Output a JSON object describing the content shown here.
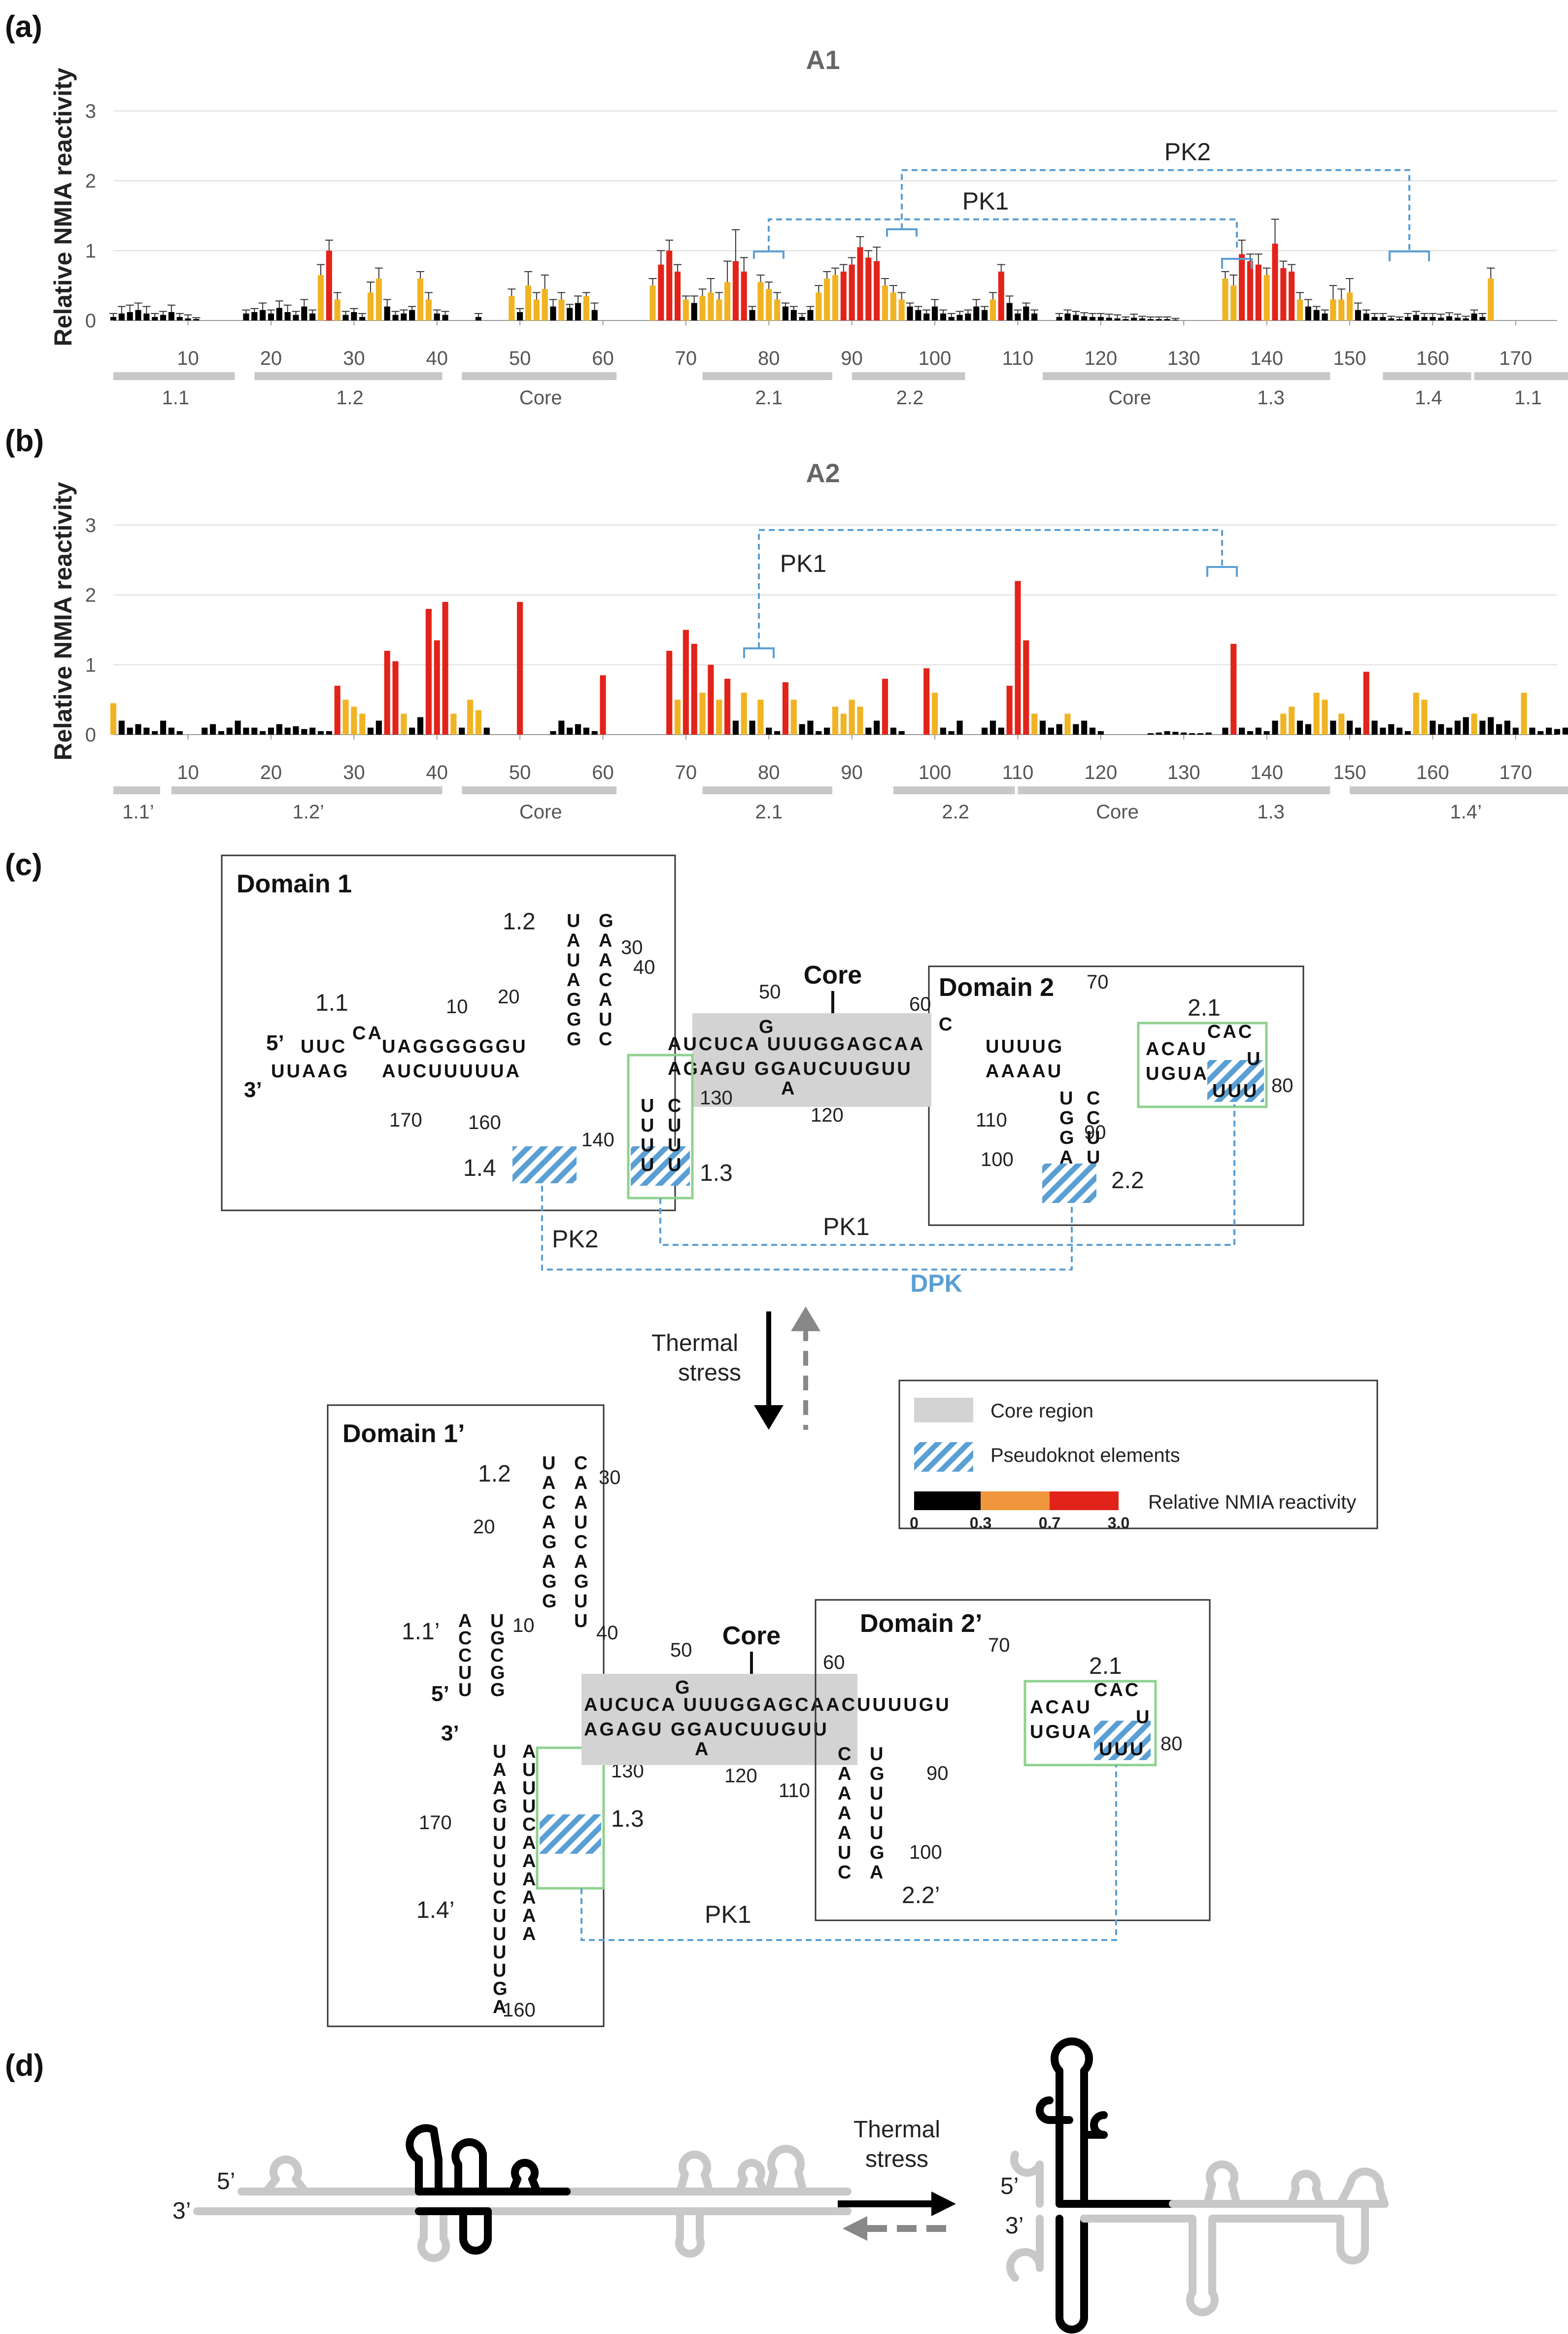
{
  "panels": {
    "a": "(a)",
    "b": "(b)",
    "c": "(c)",
    "d": "(d)"
  },
  "chart_data": [
    {
      "type": "bar",
      "title": "A1",
      "ylabel": "Relative NMIA reactivity",
      "ylim": [
        0,
        3
      ],
      "yticks": [
        "0",
        "1",
        "2",
        "3"
      ],
      "xticks": [
        "10",
        "20",
        "30",
        "40",
        "50",
        "60",
        "70",
        "80",
        "90",
        "100",
        "110",
        "120",
        "130",
        "140",
        "150",
        "160",
        "170"
      ],
      "xlim": [
        1,
        175
      ],
      "regions": [
        {
          "label": "1.1",
          "start": 1,
          "end": 16
        },
        {
          "label": "1.2",
          "start": 18,
          "end": 41
        },
        {
          "label": "Core",
          "start": 43,
          "end": 62
        },
        {
          "label": "2.1",
          "start": 72,
          "end": 88
        },
        {
          "label": "2.2",
          "start": 90,
          "end": 104
        },
        {
          "label": "Core",
          "start": 113,
          "end": 134
        },
        {
          "label": "1.3",
          "start": 133,
          "end": 148
        },
        {
          "label": "1.4",
          "start": 154,
          "end": 165
        },
        {
          "label": "1.1",
          "start": 165,
          "end": 178
        }
      ],
      "annotations": [
        "PK1",
        "PK2"
      ],
      "values": [
        0.05,
        0.1,
        0.12,
        0.15,
        0.1,
        0.05,
        0.08,
        0.12,
        0.05,
        0.03,
        0.02,
        0.0,
        0.0,
        0.0,
        0.0,
        0.0,
        0.1,
        0.12,
        0.15,
        0.1,
        0.18,
        0.12,
        0.08,
        0.2,
        0.1,
        0.65,
        1.0,
        0.3,
        0.08,
        0.12,
        0.05,
        0.4,
        0.6,
        0.2,
        0.08,
        0.1,
        0.15,
        0.6,
        0.3,
        0.1,
        0.08,
        0.0,
        0.0,
        0.0,
        0.05,
        0.0,
        0.0,
        0.0,
        0.35,
        0.12,
        0.5,
        0.3,
        0.45,
        0.2,
        0.3,
        0.18,
        0.25,
        0.35,
        0.15,
        0.0,
        0.0,
        0.0,
        0.0,
        0.0,
        0.0,
        0.5,
        0.8,
        1.0,
        0.7,
        0.3,
        0.25,
        0.35,
        0.4,
        0.3,
        0.55,
        0.85,
        0.7,
        0.15,
        0.55,
        0.45,
        0.3,
        0.2,
        0.15,
        0.05,
        0.15,
        0.4,
        0.6,
        0.65,
        0.7,
        0.8,
        1.05,
        0.9,
        0.85,
        0.5,
        0.4,
        0.3,
        0.2,
        0.15,
        0.1,
        0.2,
        0.1,
        0.05,
        0.08,
        0.1,
        0.2,
        0.15,
        0.3,
        0.7,
        0.25,
        0.1,
        0.2,
        0.1,
        0.0,
        0.0,
        0.05,
        0.1,
        0.08,
        0.06,
        0.05,
        0.05,
        0.04,
        0.03,
        0.02,
        0.04,
        0.03,
        0.02,
        0.02,
        0.02,
        0.01,
        0.0,
        0.0,
        0.0,
        0.0,
        0.0,
        0.6,
        0.5,
        0.95,
        0.85,
        0.8,
        0.65,
        1.1,
        0.75,
        0.7,
        0.3,
        0.2,
        0.15,
        0.1,
        0.3,
        0.3,
        0.4,
        0.15,
        0.1,
        0.05,
        0.05,
        0.03,
        0.02,
        0.05,
        0.08,
        0.05,
        0.05,
        0.04,
        0.06,
        0.04,
        0.03,
        0.1,
        0.05,
        0.6
      ],
      "errors": [
        0.05,
        0.1,
        0.1,
        0.1,
        0.1,
        0.05,
        0.05,
        0.1,
        0.05,
        0.05,
        0.02,
        0.0,
        0.0,
        0.0,
        0.0,
        0.0,
        0.05,
        0.05,
        0.1,
        0.05,
        0.1,
        0.1,
        0.05,
        0.1,
        0.05,
        0.15,
        0.15,
        0.1,
        0.05,
        0.05,
        0.05,
        0.15,
        0.15,
        0.1,
        0.05,
        0.05,
        0.05,
        0.1,
        0.1,
        0.05,
        0.05,
        0.0,
        0.0,
        0.0,
        0.05,
        0.0,
        0.0,
        0.0,
        0.1,
        0.05,
        0.2,
        0.1,
        0.2,
        0.1,
        0.1,
        0.05,
        0.1,
        0.05,
        0.1,
        0.0,
        0.0,
        0.0,
        0.0,
        0.0,
        0.0,
        0.1,
        0.2,
        0.15,
        0.1,
        0.05,
        0.1,
        0.1,
        0.2,
        0.1,
        0.3,
        0.45,
        0.2,
        0.05,
        0.1,
        0.1,
        0.1,
        0.05,
        0.05,
        0.05,
        0.05,
        0.1,
        0.1,
        0.1,
        0.1,
        0.1,
        0.15,
        0.1,
        0.2,
        0.1,
        0.1,
        0.1,
        0.05,
        0.05,
        0.05,
        0.1,
        0.05,
        0.05,
        0.05,
        0.05,
        0.1,
        0.05,
        0.1,
        0.1,
        0.1,
        0.05,
        0.05,
        0.05,
        0.0,
        0.0,
        0.05,
        0.05,
        0.05,
        0.05,
        0.05,
        0.05,
        0.05,
        0.05,
        0.03,
        0.05,
        0.03,
        0.03,
        0.03,
        0.03,
        0.02,
        0.0,
        0.0,
        0.0,
        0.0,
        0.0,
        0.1,
        0.15,
        0.2,
        0.1,
        0.15,
        0.1,
        0.35,
        0.1,
        0.1,
        0.1,
        0.1,
        0.05,
        0.05,
        0.2,
        0.15,
        0.2,
        0.1,
        0.05,
        0.05,
        0.05,
        0.03,
        0.03,
        0.05,
        0.05,
        0.05,
        0.05,
        0.05,
        0.05,
        0.05,
        0.03,
        0.05,
        0.05,
        0.15
      ]
    },
    {
      "type": "bar",
      "title": "A2",
      "ylabel": "Relative NMIA reactivity",
      "ylim": [
        0,
        3
      ],
      "yticks": [
        "0",
        "1",
        "2",
        "3"
      ],
      "xticks": [
        "10",
        "20",
        "30",
        "40",
        "50",
        "60",
        "70",
        "80",
        "90",
        "100",
        "110",
        "120",
        "130",
        "140",
        "150",
        "160",
        "170"
      ],
      "xlim": [
        1,
        175
      ],
      "regions": [
        {
          "label": "1.1’",
          "start": 1,
          "end": 7
        },
        {
          "label": "1.2’",
          "start": 8,
          "end": 41
        },
        {
          "label": "Core",
          "start": 43,
          "end": 62
        },
        {
          "label": "2.1",
          "start": 72,
          "end": 88
        },
        {
          "label": "2.2",
          "start": 95,
          "end": 110
        },
        {
          "label": "Core",
          "start": 110,
          "end": 134
        },
        {
          "label": "1.3",
          "start": 133,
          "end": 148
        },
        {
          "label": "1.4’",
          "start": 150,
          "end": 178
        }
      ],
      "annotations": [
        "PK1"
      ],
      "values": [
        0.45,
        0.2,
        0.1,
        0.15,
        0.1,
        0.05,
        0.2,
        0.1,
        0.05,
        0.0,
        0.0,
        0.1,
        0.15,
        0.05,
        0.1,
        0.2,
        0.1,
        0.1,
        0.05,
        0.1,
        0.15,
        0.1,
        0.12,
        0.08,
        0.1,
        0.05,
        0.05,
        0.7,
        0.5,
        0.4,
        0.3,
        0.1,
        0.2,
        1.2,
        1.05,
        0.3,
        0.1,
        0.25,
        1.8,
        1.35,
        1.9,
        0.3,
        0.1,
        0.5,
        0.35,
        0.1,
        0.0,
        0.0,
        0.0,
        1.9,
        0.0,
        0.0,
        0.0,
        0.05,
        0.2,
        0.1,
        0.15,
        0.1,
        0.05,
        0.85,
        0.0,
        0.0,
        0.0,
        0.0,
        0.0,
        0.0,
        0.0,
        1.2,
        0.5,
        1.5,
        1.3,
        0.6,
        1.0,
        0.5,
        0.8,
        0.2,
        0.6,
        0.2,
        0.5,
        0.1,
        0.05,
        0.75,
        0.5,
        0.15,
        0.2,
        0.05,
        0.1,
        0.4,
        0.3,
        0.5,
        0.4,
        0.1,
        0.2,
        0.8,
        0.1,
        0.05,
        0.0,
        0.0,
        0.95,
        0.6,
        0.1,
        0.05,
        0.2,
        0.0,
        0.0,
        0.1,
        0.2,
        0.1,
        0.7,
        2.2,
        1.35,
        0.3,
        0.2,
        0.1,
        0.15,
        0.3,
        0.15,
        0.2,
        0.1,
        0.05,
        0.0,
        0.0,
        0.0,
        0.0,
        0.0,
        0.02,
        0.03,
        0.05,
        0.04,
        0.03,
        0.02,
        0.02,
        0.03,
        0.0,
        0.1,
        1.3,
        0.1,
        0.05,
        0.1,
        0.05,
        0.2,
        0.3,
        0.4,
        0.2,
        0.15,
        0.6,
        0.5,
        0.2,
        0.3,
        0.2,
        0.1,
        0.9,
        0.2,
        0.1,
        0.15,
        0.1,
        0.05,
        0.6,
        0.5,
        0.2,
        0.15,
        0.1,
        0.2,
        0.25,
        0.3,
        0.2,
        0.25,
        0.15,
        0.2,
        0.1,
        0.6,
        0.1,
        0.05,
        0.1,
        0.08,
        0.1
      ]
    }
  ],
  "panel_c": {
    "domain1": "Domain 1",
    "domain2": "Domain 2",
    "domain1p": "Domain 1’",
    "domain2p": "Domain 2’",
    "core": "Core",
    "pk1": "PK1",
    "pk2": "PK2",
    "dpk": "DPK",
    "thermal": [
      "Thermal",
      "stress"
    ],
    "five": "5’",
    "three": "3’",
    "helix_labels": {
      "h11": "1.1",
      "h12": "1.2",
      "h13": "1.3",
      "h14": "1.4",
      "h21": "2.1",
      "h22": "2.2",
      "h11p": "1.1’",
      "h12p": "1.2",
      "h13p": "1.3",
      "h14p": "1.4’",
      "h21p": "2.1",
      "h22p": "2.2’"
    },
    "numbers_top": [
      "10",
      "20",
      "30",
      "40",
      "50",
      "60",
      "70",
      "80",
      "90",
      "100",
      "110",
      "120",
      "130",
      "140",
      "160",
      "170"
    ],
    "numbers_bottom": [
      "10",
      "20",
      "30",
      "40",
      "50",
      "60",
      "70",
      "80",
      "90",
      "100",
      "110",
      "120",
      "130",
      "160",
      "170"
    ],
    "seq_top": {
      "h11_5": "UUC",
      "h11_ca": "CA",
      "h11_top": "UAGGGGGGU",
      "h11_3": "UUAAG",
      "h11_bot": "AUCUUUUUA",
      "core_top": "AUCUCA  UUUGGAGCAA",
      "core_bot": "AGAGU   GGAUCUUGUU",
      "core_g": "G",
      "core_a": "A",
      "d2_top": "UUUUG",
      "d2_bot": "AAAAU",
      "d2_c": "C",
      "d2_cac": "CAC",
      "h21_top": "ACAU",
      "h21_bot": "UGUA",
      "h21_cac": "CAC",
      "h21_u": "U",
      "h21_uuu": "UUU"
    },
    "seq_bottom": {
      "core_top": "AUCUCA  UUUGGAGCAACUUUUGU",
      "core_bot": "AGAGU   GGAUCUUGUU",
      "core_g": "G",
      "core_a": "A",
      "h21_top": "ACAU",
      "h21_bot": "UGUA",
      "h21_cac": "CAC",
      "h21_u": "U",
      "h21_uuu": "UUU"
    },
    "legend": {
      "core_region": "Core region",
      "pseudoknot": "Pseudoknot elements",
      "reactivity": "Relative NMIA reactivity",
      "ticks": [
        "0",
        "0.3",
        "0.7",
        "3.0"
      ]
    }
  },
  "panel_d": {
    "thermal": [
      "Thermal",
      "stress"
    ],
    "five": "5’",
    "three": "3’"
  },
  "colors": {
    "low": "#000000",
    "mid": "#f0b323",
    "high": "#e2231a",
    "region_bar": "#c8c8c8",
    "pk_line": "#5a9fd4",
    "box_green": "#8fd18f",
    "core_gray": "#d3d3d3"
  }
}
